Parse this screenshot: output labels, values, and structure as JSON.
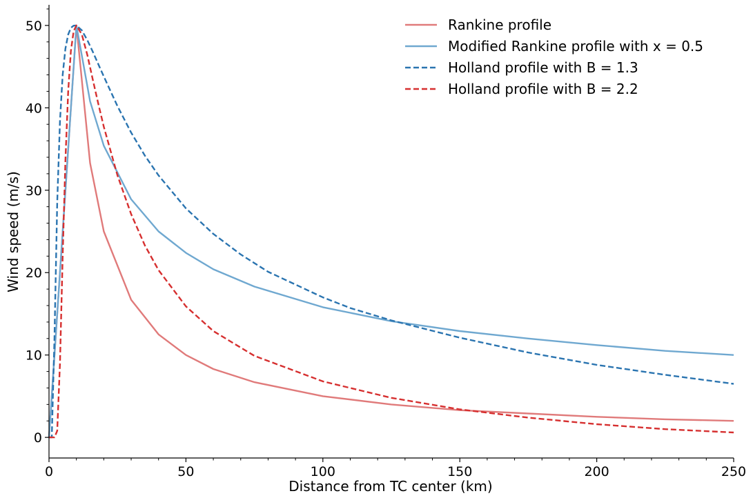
{
  "chart_data": {
    "type": "line",
    "title": "",
    "xlabel": "Distance from TC center (km)",
    "ylabel": "Wind speed (m/s)",
    "xlim": [
      0,
      250
    ],
    "ylim": [
      -2.5,
      52.5
    ],
    "xticks": [
      0,
      50,
      100,
      150,
      200,
      250
    ],
    "yticks": [
      0,
      10,
      20,
      30,
      40,
      50
    ],
    "grid": false,
    "legend_position": "top-right",
    "series": [
      {
        "name": "Rankine profile",
        "color": "#e07a7a",
        "dash": "solid",
        "x": [
          0,
          10,
          15,
          20,
          30,
          40,
          50,
          60,
          75,
          100,
          125,
          150,
          175,
          200,
          225,
          250
        ],
        "y": [
          0,
          50,
          33.3,
          25,
          16.7,
          12.5,
          10,
          8.3,
          6.7,
          5,
          4,
          3.3,
          2.9,
          2.5,
          2.2,
          2
        ]
      },
      {
        "name": "Modified Rankine profile with x = 0.5",
        "color": "#6fa8d0",
        "dash": "solid",
        "x": [
          0,
          10,
          15,
          20,
          30,
          40,
          50,
          60,
          75,
          100,
          125,
          150,
          175,
          200,
          225,
          250
        ],
        "y": [
          0,
          50,
          40.8,
          35.4,
          28.9,
          25,
          22.4,
          20.4,
          18.3,
          15.8,
          14.1,
          12.9,
          12,
          11.2,
          10.5,
          10
        ]
      },
      {
        "name": "Holland profile with B = 1.3",
        "color": "#2a74b0",
        "dash": "dashed",
        "x": [
          0,
          1,
          2,
          3,
          4,
          5,
          6,
          7,
          8,
          9,
          10,
          12,
          14,
          16,
          18,
          20,
          25,
          30,
          35,
          40,
          50,
          60,
          70,
          80,
          100,
          110,
          125,
          150,
          175,
          200,
          225,
          250
        ],
        "y": [
          0,
          0,
          12,
          28.5,
          38.4,
          44,
          47.2,
          48.9,
          49.7,
          49.97,
          50,
          49.4,
          48.2,
          46.8,
          45.3,
          43.8,
          40.2,
          37,
          34.2,
          31.8,
          27.8,
          24.7,
          22.2,
          20.1,
          17,
          15.7,
          14.2,
          12.1,
          10.3,
          8.8,
          7.6,
          6.5
        ]
      },
      {
        "name": "Holland profile with B = 2.2",
        "color": "#d62f2f",
        "dash": "dashed",
        "x": [
          0,
          2,
          3,
          4,
          5,
          6,
          7,
          8,
          9,
          10,
          12,
          14,
          16,
          18,
          20,
          25,
          30,
          35,
          40,
          50,
          60,
          75,
          100,
          125,
          150,
          175,
          200,
          225,
          250
        ],
        "y": [
          0,
          0,
          0.8,
          9,
          22,
          33.7,
          42,
          46.9,
          49.3,
          50,
          48.9,
          46.4,
          43.4,
          40.5,
          37.7,
          31.8,
          27.1,
          23.3,
          20.3,
          15.9,
          12.9,
          9.9,
          6.8,
          4.8,
          3.4,
          2.4,
          1.6,
          1,
          0.6
        ]
      }
    ]
  }
}
